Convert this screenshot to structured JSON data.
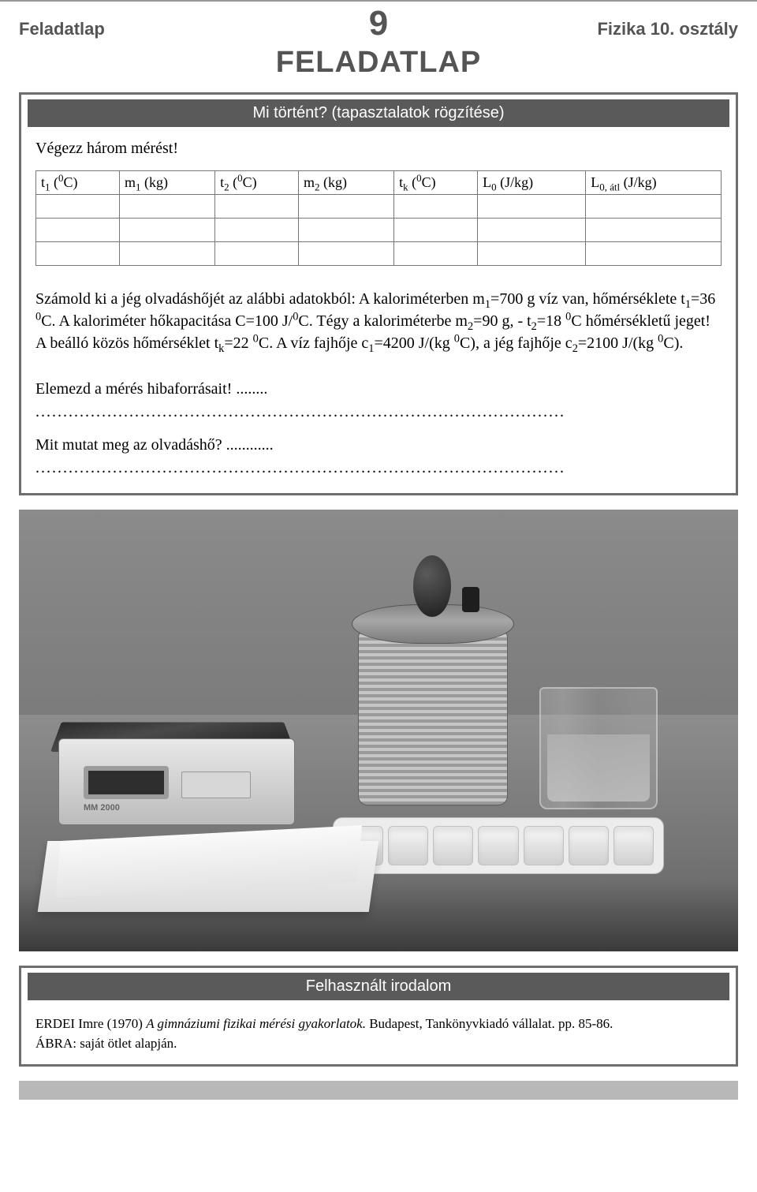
{
  "header": {
    "left": "Feladatlap",
    "page_number": "9",
    "right": "Fizika 10. osztály"
  },
  "main_title": "FELADATLAP",
  "section1": {
    "bar_title": "Mi történt? (tapasztalatok rögzítése)",
    "intro": "Végezz három mérést!",
    "table": {
      "columns": [
        "t₁ (⁰C)",
        "m₁ (kg)",
        "t₂ (⁰C)",
        "m₂ (kg)",
        "tₖ (⁰C)",
        "L₀ (J/kg)",
        "L₀, átl (J/kg)"
      ],
      "rows": [
        [
          "",
          "",
          "",
          "",
          "",
          "",
          ""
        ],
        [
          "",
          "",
          "",
          "",
          "",
          "",
          ""
        ],
        [
          "",
          "",
          "",
          "",
          "",
          "",
          ""
        ]
      ],
      "border_color": "#777777"
    },
    "paragraph": "Számold ki a jég olvadáshőjét az alábbi adatokból: A kaloriméterben m₁=700 g víz van, hőmérséklete t₁=36 ⁰C. A kaloriméter hőkapacitása C=100 J/⁰C. Tégy a kaloriméterbe m₂=90 g, - t₂=18 ⁰C hőmérsékletű jeget! A beálló közös hőmérséklet tₖ=22 ⁰C. A víz fajhője c₁=4200 J/(kg ⁰C), a jég fajhője c₂=2100 J/(kg ⁰C).",
    "q1": "Elemezd a mérés hibaforrásait! ........",
    "dots": "................................................................................................",
    "q2": "Mit mutat meg az olvadáshő? ............"
  },
  "photo": {
    "ice_tray_cells": 7,
    "scale_model_label": "MM 2000",
    "background_color": "#474747"
  },
  "references": {
    "bar_title": "Felhasznált irodalom",
    "line1_author": "ERDEI Imre (1970) ",
    "line1_title_italic": "A gimnáziumi fizikai mérési gyakorlatok.",
    "line1_rest": " Budapest, Tankönyvkiadó vállalat. pp. 85-86.",
    "line2": "ÁBRA: saját ötlet alapján."
  },
  "colors": {
    "accent_gray": "#545454",
    "bar_bg": "#5a5a5a",
    "frame_border": "#6e6e6e",
    "footer_band": "#b8b8b8"
  }
}
